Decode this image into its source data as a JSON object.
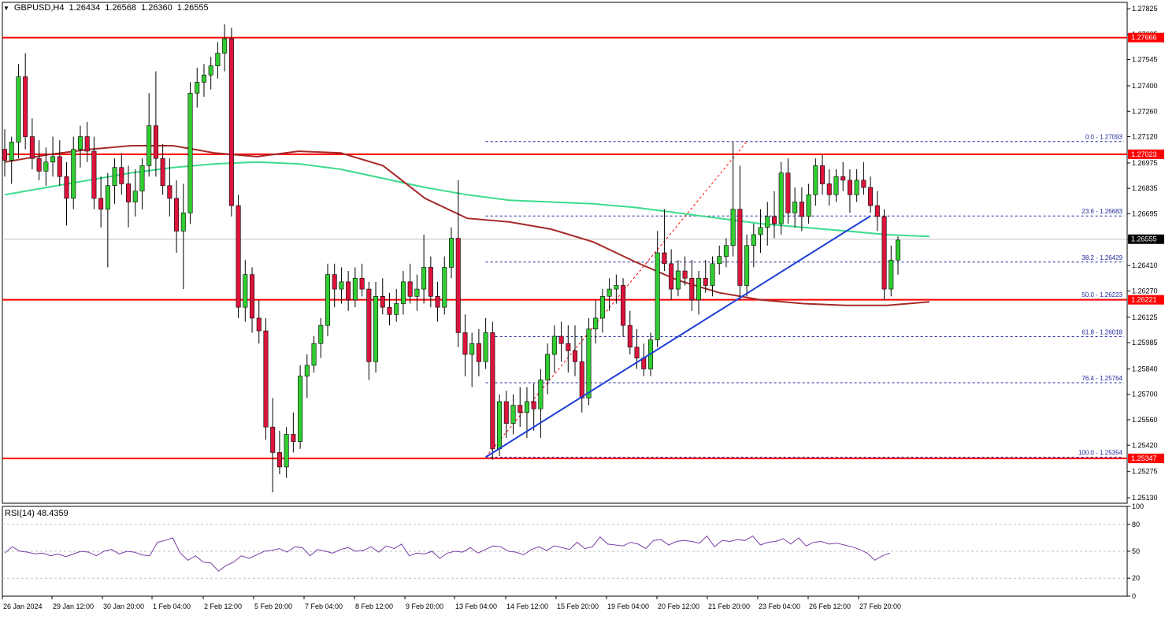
{
  "header": {
    "caret": "▼",
    "symbol": "GBPUSD,H4",
    "open": "1.26434",
    "high": "1.26568",
    "low": "1.26360",
    "close": "1.26555"
  },
  "rsi_header": {
    "name": "RSI(14)",
    "value": "48.4359"
  },
  "colors": {
    "bull": "#32cd32",
    "bear": "#dc143c",
    "ma_fast": "#3cdc8c",
    "ma_slow": "#a52a2a",
    "level": "#ff0000",
    "trend": "#1f3fd6",
    "fib": "#1f2a9c",
    "rsi": "#7b3ea8"
  },
  "chart_data": {
    "type": "candlestick",
    "symbol": "GBPUSD",
    "timeframe": "H4",
    "y_ticks": [
      "1.27825",
      "1.27685",
      "1.27545",
      "1.27400",
      "1.27260",
      "1.27120",
      "1.26975",
      "1.26835",
      "1.26695",
      "1.26555",
      "1.26410",
      "1.26270",
      "1.26125",
      "1.25985",
      "1.25840",
      "1.25700",
      "1.25560",
      "1.25420",
      "1.25275",
      "1.25130"
    ],
    "ylim": [
      1.251,
      1.2786
    ],
    "x_labels": [
      "26 Jan 2024",
      "29 Jan 12:00",
      "30 Jan 20:00",
      "1 Feb 04:00",
      "2 Feb 12:00",
      "5 Feb 20:00",
      "7 Feb 04:00",
      "8 Feb 12:00",
      "9 Feb 20:00",
      "13 Feb 04:00",
      "14 Feb 12:00",
      "15 Feb 20:00",
      "19 Feb 04:00",
      "20 Feb 12:00",
      "21 Feb 20:00",
      "23 Feb 04:00",
      "26 Feb 12:00",
      "27 Feb 20:00"
    ],
    "candles": [
      [
        1.2705,
        1.2716,
        1.269,
        1.2699
      ],
      [
        1.2699,
        1.2712,
        1.2686,
        1.2709
      ],
      [
        1.2709,
        1.2752,
        1.27,
        1.2745
      ],
      [
        1.2745,
        1.2758,
        1.2705,
        1.2712
      ],
      [
        1.2712,
        1.2722,
        1.2694,
        1.27
      ],
      [
        1.27,
        1.271,
        1.2688,
        1.2693
      ],
      [
        1.2693,
        1.2706,
        1.2685,
        1.2698
      ],
      [
        1.2698,
        1.2712,
        1.269,
        1.2701
      ],
      [
        1.2701,
        1.271,
        1.2685,
        1.269
      ],
      [
        1.269,
        1.2698,
        1.2663,
        1.2678
      ],
      [
        1.2678,
        1.2712,
        1.2672,
        1.2705
      ],
      [
        1.2705,
        1.2718,
        1.2695,
        1.2712
      ],
      [
        1.2712,
        1.272,
        1.2698,
        1.2704
      ],
      [
        1.2704,
        1.2712,
        1.2672,
        1.2678
      ],
      [
        1.2678,
        1.269,
        1.2662,
        1.2672
      ],
      [
        1.2672,
        1.2692,
        1.264,
        1.2685
      ],
      [
        1.2685,
        1.27,
        1.2675,
        1.2695
      ],
      [
        1.2695,
        1.2703,
        1.268,
        1.2686
      ],
      [
        1.2686,
        1.2696,
        1.2662,
        1.2676
      ],
      [
        1.2676,
        1.2694,
        1.2668,
        1.2682
      ],
      [
        1.2682,
        1.27,
        1.2672,
        1.2696
      ],
      [
        1.2696,
        1.2736,
        1.269,
        1.2718
      ],
      [
        1.2718,
        1.2748,
        1.269,
        1.27
      ],
      [
        1.27,
        1.2708,
        1.268,
        1.2685
      ],
      [
        1.2685,
        1.27,
        1.2668,
        1.2678
      ],
      [
        1.2678,
        1.2688,
        1.2648,
        1.266
      ],
      [
        1.266,
        1.2686,
        1.2628,
        1.267
      ],
      [
        1.267,
        1.2742,
        1.2664,
        1.2736
      ],
      [
        1.2736,
        1.275,
        1.2728,
        1.2742
      ],
      [
        1.2742,
        1.2752,
        1.2734,
        1.2746
      ],
      [
        1.2746,
        1.2756,
        1.2738,
        1.2751
      ],
      [
        1.2751,
        1.2764,
        1.2744,
        1.2758
      ],
      [
        1.2758,
        1.2774,
        1.2748,
        1.2766
      ],
      [
        1.2766,
        1.2772,
        1.2668,
        1.2674
      ],
      [
        1.2674,
        1.268,
        1.2612,
        1.2618
      ],
      [
        1.2618,
        1.2644,
        1.261,
        1.2636
      ],
      [
        1.2636,
        1.264,
        1.2604,
        1.2612
      ],
      [
        1.2612,
        1.2622,
        1.2598,
        1.2605
      ],
      [
        1.2605,
        1.2612,
        1.2545,
        1.2552
      ],
      [
        1.2552,
        1.2568,
        1.2516,
        1.2538
      ],
      [
        1.2538,
        1.255,
        1.2526,
        1.253
      ],
      [
        1.253,
        1.2552,
        1.2524,
        1.2548
      ],
      [
        1.2548,
        1.256,
        1.2538,
        1.2544
      ],
      [
        1.2544,
        1.2586,
        1.254,
        1.258
      ],
      [
        1.258,
        1.2592,
        1.2568,
        1.2586
      ],
      [
        1.2586,
        1.2602,
        1.2582,
        1.2598
      ],
      [
        1.2598,
        1.2612,
        1.259,
        1.2608
      ],
      [
        1.2608,
        1.2642,
        1.2602,
        1.2636
      ],
      [
        1.2636,
        1.2642,
        1.2618,
        1.2628
      ],
      [
        1.2628,
        1.264,
        1.262,
        1.2632
      ],
      [
        1.2632,
        1.2638,
        1.2616,
        1.2622
      ],
      [
        1.2622,
        1.264,
        1.2618,
        1.2634
      ],
      [
        1.2634,
        1.2642,
        1.2624,
        1.2628
      ],
      [
        1.2628,
        1.2632,
        1.2578,
        1.2588
      ],
      [
        1.2588,
        1.2632,
        1.2582,
        1.2624
      ],
      [
        1.2624,
        1.2634,
        1.2614,
        1.2618
      ],
      [
        1.2618,
        1.2626,
        1.2608,
        1.2614
      ],
      [
        1.2614,
        1.2628,
        1.261,
        1.262
      ],
      [
        1.262,
        1.2638,
        1.2614,
        1.2632
      ],
      [
        1.2632,
        1.2642,
        1.262,
        1.2624
      ],
      [
        1.2624,
        1.2636,
        1.2616,
        1.2628
      ],
      [
        1.2628,
        1.2658,
        1.262,
        1.264
      ],
      [
        1.264,
        1.2646,
        1.2618,
        1.2624
      ],
      [
        1.2624,
        1.2632,
        1.261,
        1.2618
      ],
      [
        1.2618,
        1.2646,
        1.2614,
        1.264
      ],
      [
        1.264,
        1.2662,
        1.2634,
        1.2656
      ],
      [
        1.2656,
        1.2688,
        1.2596,
        1.2604
      ],
      [
        1.2604,
        1.2614,
        1.258,
        1.2592
      ],
      [
        1.2592,
        1.2604,
        1.2574,
        1.2598
      ],
      [
        1.2598,
        1.2606,
        1.258,
        1.2588
      ],
      [
        1.2588,
        1.2612,
        1.2584,
        1.2604
      ],
      [
        1.2604,
        1.261,
        1.2534,
        1.254
      ],
      [
        1.254,
        1.257,
        1.2536,
        1.2566
      ],
      [
        1.2566,
        1.2572,
        1.2546,
        1.2554
      ],
      [
        1.2554,
        1.257,
        1.2548,
        1.2564
      ],
      [
        1.2564,
        1.2574,
        1.2552,
        1.256
      ],
      [
        1.256,
        1.2574,
        1.2546,
        1.2566
      ],
      [
        1.2566,
        1.2576,
        1.255,
        1.2562
      ],
      [
        1.2562,
        1.2584,
        1.2546,
        1.2578
      ],
      [
        1.2578,
        1.2598,
        1.257,
        1.2592
      ],
      [
        1.2592,
        1.2608,
        1.2582,
        1.2602
      ],
      [
        1.2602,
        1.261,
        1.2588,
        1.2598
      ],
      [
        1.2598,
        1.2608,
        1.2582,
        1.2594
      ],
      [
        1.2594,
        1.2608,
        1.258,
        1.2588
      ],
      [
        1.2588,
        1.2602,
        1.256,
        1.2568
      ],
      [
        1.2568,
        1.2612,
        1.2564,
        1.2606
      ],
      [
        1.2606,
        1.2622,
        1.2598,
        1.2612
      ],
      [
        1.2612,
        1.2628,
        1.2604,
        1.2624
      ],
      [
        1.2624,
        1.2634,
        1.2616,
        1.2628
      ],
      [
        1.2628,
        1.2636,
        1.262,
        1.263
      ],
      [
        1.263,
        1.2634,
        1.2602,
        1.2608
      ],
      [
        1.2608,
        1.2616,
        1.2592,
        1.2596
      ],
      [
        1.2596,
        1.2606,
        1.2584,
        1.259
      ],
      [
        1.259,
        1.2598,
        1.258,
        1.2584
      ],
      [
        1.2584,
        1.2604,
        1.258,
        1.26
      ],
      [
        1.26,
        1.266,
        1.2596,
        1.2648
      ],
      [
        1.2648,
        1.2672,
        1.2638,
        1.2642
      ],
      [
        1.2642,
        1.265,
        1.2622,
        1.2628
      ],
      [
        1.2628,
        1.2644,
        1.2624,
        1.2638
      ],
      [
        1.2638,
        1.2646,
        1.263,
        1.2634
      ],
      [
        1.2634,
        1.2644,
        1.2616,
        1.2622
      ],
      [
        1.2622,
        1.2638,
        1.2614,
        1.2634
      ],
      [
        1.2634,
        1.2644,
        1.2626,
        1.263
      ],
      [
        1.263,
        1.2646,
        1.2624,
        1.2642
      ],
      [
        1.2642,
        1.2652,
        1.2636,
        1.2646
      ],
      [
        1.2646,
        1.2656,
        1.264,
        1.2652
      ],
      [
        1.2652,
        1.2709,
        1.2646,
        1.2672
      ],
      [
        1.2672,
        1.2696,
        1.2622,
        1.263
      ],
      [
        1.263,
        1.2658,
        1.2624,
        1.2652
      ],
      [
        1.2652,
        1.2664,
        1.264,
        1.2658
      ],
      [
        1.2658,
        1.2672,
        1.2648,
        1.2662
      ],
      [
        1.2662,
        1.2676,
        1.2652,
        1.2668
      ],
      [
        1.2668,
        1.2682,
        1.2656,
        1.2664
      ],
      [
        1.2664,
        1.2698,
        1.2658,
        1.2692
      ],
      [
        1.2692,
        1.27,
        1.2664,
        1.267
      ],
      [
        1.267,
        1.2684,
        1.2662,
        1.2676
      ],
      [
        1.2676,
        1.2684,
        1.266,
        1.2668
      ],
      [
        1.2668,
        1.2686,
        1.2664,
        1.268
      ],
      [
        1.268,
        1.27,
        1.2674,
        1.2696
      ],
      [
        1.2696,
        1.2702,
        1.268,
        1.2686
      ],
      [
        1.2686,
        1.2694,
        1.2674,
        1.268
      ],
      [
        1.268,
        1.2694,
        1.2676,
        1.269
      ],
      [
        1.269,
        1.2698,
        1.2682,
        1.2688
      ],
      [
        1.2688,
        1.2694,
        1.267,
        1.268
      ],
      [
        1.268,
        1.2694,
        1.2676,
        1.2688
      ],
      [
        1.2688,
        1.2698,
        1.268,
        1.2684
      ],
      [
        1.2684,
        1.269,
        1.267,
        1.2674
      ],
      [
        1.2674,
        1.2682,
        1.266,
        1.2668
      ],
      [
        1.2668,
        1.2672,
        1.2622,
        1.2628
      ],
      [
        1.2628,
        1.2652,
        1.2624,
        1.2644
      ],
      [
        1.2644,
        1.2657,
        1.2636,
        1.2655
      ]
    ],
    "moving_averages": [
      {
        "values": [
          1.268,
          1.2684,
          1.2688,
          1.2692,
          1.2695,
          1.2697,
          1.2698,
          1.2697,
          1.2694,
          1.2689,
          1.2684,
          1.268,
          1.2677,
          1.2676,
          1.2675,
          1.2673,
          1.267,
          1.2667,
          1.2664,
          1.2662,
          1.266,
          1.2658,
          1.2657
        ]
      },
      {
        "values": [
          1.2698,
          1.2702,
          1.2705,
          1.2707,
          1.2707,
          1.2703,
          1.2701,
          1.2704,
          1.2703,
          1.2696,
          1.2678,
          1.2667,
          1.2665,
          1.2661,
          1.2654,
          1.2643,
          1.2633,
          1.2626,
          1.2622,
          1.262,
          1.2619,
          1.2619,
          1.2621
        ]
      }
    ],
    "fibonacci": [
      {
        "label": "0.0 - 1.27093",
        "value": 1.27093
      },
      {
        "label": "23.6 - 1.26683",
        "value": 1.26683
      },
      {
        "label": "38.2 - 1.26429",
        "value": 1.26429
      },
      {
        "label": "50.0 - 1.26223",
        "value": 1.26223
      },
      {
        "label": "61.8 - 1.26018",
        "value": 1.26018
      },
      {
        "label": "76.4 - 1.25764",
        "value": 1.25764
      },
      {
        "label": "100.0 - 1.25354",
        "value": 1.25354
      }
    ],
    "horizontal_levels": [
      {
        "label": "1.27666",
        "value": 1.27666
      },
      {
        "label": "1.27023",
        "value": 1.27023
      },
      {
        "label": "1.26221",
        "value": 1.26221
      },
      {
        "label": "1.25347",
        "value": 1.25347
      }
    ],
    "current_price": {
      "label": "1.26555",
      "value": 1.26555
    },
    "trendline": {
      "from": 1.25354,
      "to": 1.26683
    },
    "rsi": {
      "ylim": [
        0,
        100
      ],
      "y_ticks": [
        "100",
        "80",
        "50",
        "20",
        "0"
      ],
      "values": [
        48,
        55,
        50,
        49,
        47,
        48,
        45,
        47,
        44,
        47,
        50,
        49,
        45,
        50,
        52,
        47,
        50,
        49,
        46,
        45,
        60,
        62,
        65,
        48,
        40,
        45,
        38,
        37,
        28,
        34,
        38,
        45,
        42,
        46,
        50,
        51,
        53,
        49,
        55,
        54,
        45,
        52,
        50,
        48,
        52,
        54,
        50,
        51,
        55,
        49,
        56,
        53,
        58,
        45,
        48,
        47,
        50,
        42,
        48,
        50,
        49,
        54,
        48,
        52,
        56,
        55,
        50,
        49,
        46,
        52,
        55,
        51,
        56,
        54,
        52,
        60,
        53,
        55,
        66,
        58,
        57,
        56,
        60,
        58,
        53,
        62,
        63,
        57,
        61,
        62,
        61,
        59,
        67,
        55,
        62,
        61,
        63,
        62,
        67,
        57,
        60,
        61,
        64,
        58,
        65,
        56,
        60,
        61,
        58,
        59,
        57,
        55,
        52,
        48,
        40,
        45,
        48
      ]
    }
  }
}
